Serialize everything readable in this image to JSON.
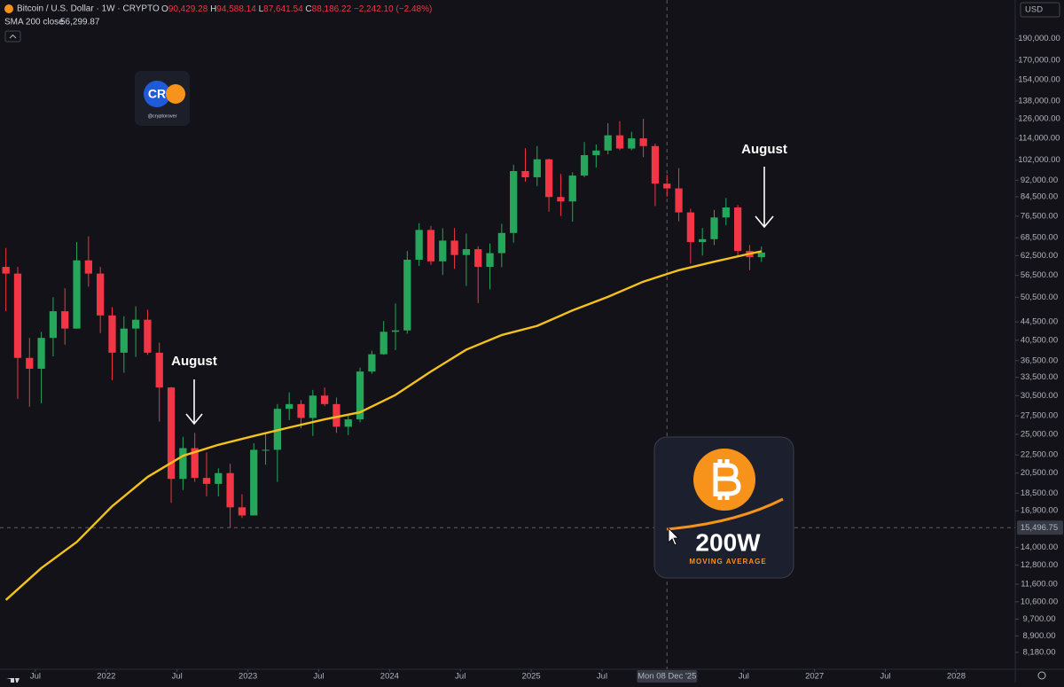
{
  "header": {
    "symbol": "Bitcoin / U.S. Dollar · 1W · CRYPTO",
    "open_label": "O",
    "open": "90,429.28",
    "high_label": "H",
    "high": "94,588.14",
    "low_label": "L",
    "low": "87,641.54",
    "close_label": "C",
    "close": "88,186.22",
    "change": "−2,242.10 (−2.48%)",
    "sma_value": "56,299.87",
    "currency": "USD"
  },
  "logo": {
    "mark": "CR",
    "handle": "@cryptorover"
  },
  "badge": {
    "title": "200W",
    "subtitle": "MOVING AVERAGE"
  },
  "chart_data": {
    "type": "candlestick",
    "log_scale": true,
    "up_color": "#26a65b",
    "down_color": "#f23645",
    "x": [
      "2021-04",
      "2021-05",
      "2021-06",
      "2021-07",
      "2021-08",
      "2021-09",
      "2021-10",
      "2021-11",
      "2021-12",
      "2022-01",
      "2022-02",
      "2022-03",
      "2022-04",
      "2022-05",
      "2022-06",
      "2022-07",
      "2022-08",
      "2022-09",
      "2022-10",
      "2022-11",
      "2022-12",
      "2023-01",
      "2023-02",
      "2023-03",
      "2023-04",
      "2023-05",
      "2023-06",
      "2023-07",
      "2023-08",
      "2023-09",
      "2023-10",
      "2023-11",
      "2023-12",
      "2024-01",
      "2024-02",
      "2024-03",
      "2024-04",
      "2024-05",
      "2024-06",
      "2024-07",
      "2024-08",
      "2024-09",
      "2024-10",
      "2024-11",
      "2024-12",
      "2025-01",
      "2025-02",
      "2025-03",
      "2025-04",
      "2025-05",
      "2025-06",
      "2025-07",
      "2025-08",
      "2025-09",
      "2025-10",
      "2025-11",
      "2025-12",
      "2026-01",
      "2026-02",
      "2026-03",
      "2026-04",
      "2026-05",
      "2026-06",
      "2026-07",
      "2026-08"
    ],
    "open": [
      59000,
      57000,
      37000,
      35000,
      41000,
      47000,
      43000,
      61000,
      57000,
      46000,
      38000,
      43000,
      45000,
      38000,
      31800,
      19900,
      23300,
      20000,
      19400,
      20500,
      17200,
      16500,
      23100,
      23100,
      28500,
      29200,
      27200,
      30500,
      29200,
      26000,
      27000,
      34500,
      37700,
      42300,
      42600,
      61200,
      71300,
      60700,
      67500,
      62700,
      64600,
      59000,
      63300,
      70200,
      96400,
      93400,
      102400,
      84400,
      82500,
      94200,
      104600,
      107100,
      115800,
      108200,
      114000,
      109600,
      90400,
      88200,
      78000,
      67000,
      68000,
      76000,
      80000,
      64000,
      62000
    ],
    "high": [
      65000,
      59000,
      41000,
      42300,
      50500,
      52900,
      67000,
      69000,
      59000,
      48000,
      45800,
      48200,
      47400,
      40000,
      31900,
      24700,
      25200,
      22800,
      21000,
      21500,
      18400,
      23900,
      25200,
      29200,
      31000,
      29800,
      31400,
      31800,
      30200,
      27500,
      35200,
      38400,
      44700,
      48900,
      64000,
      73800,
      72800,
      71900,
      72000,
      70000,
      65600,
      66500,
      73600,
      99600,
      108400,
      109600,
      102800,
      95000,
      95800,
      111900,
      110500,
      123200,
      124500,
      117900,
      126000,
      111000,
      94600,
      97900,
      79500,
      72000,
      79000,
      84000,
      81000,
      66000,
      65500
    ],
    "low": [
      47000,
      30000,
      28800,
      29300,
      37300,
      39600,
      43000,
      53300,
      42000,
      33000,
      34300,
      37200,
      37600,
      26700,
      17600,
      18800,
      19600,
      18200,
      18200,
      15500,
      16300,
      16500,
      21400,
      19600,
      26900,
      25800,
      24800,
      28900,
      25200,
      24900,
      26600,
      34100,
      37600,
      38500,
      41900,
      59300,
      59600,
      56600,
      58400,
      53500,
      49000,
      52600,
      58900,
      66800,
      91300,
      89300,
      78300,
      76600,
      74400,
      93400,
      98200,
      105100,
      107300,
      107300,
      103500,
      80600,
      84500,
      74500,
      60000,
      62500,
      66000,
      73000,
      62000,
      58000,
      60500
    ],
    "close": [
      57000,
      37000,
      35000,
      41000,
      47000,
      43000,
      61000,
      57000,
      46000,
      38000,
      43000,
      45000,
      38000,
      31800,
      19900,
      23300,
      20000,
      19400,
      20500,
      17200,
      16500,
      23100,
      23100,
      28500,
      29200,
      27200,
      30500,
      29200,
      26000,
      27000,
      34500,
      37700,
      42300,
      42600,
      61200,
      71300,
      60700,
      67500,
      62700,
      64600,
      59000,
      63300,
      70200,
      96400,
      93400,
      102400,
      84400,
      82500,
      94200,
      104600,
      107100,
      115800,
      108200,
      114000,
      109600,
      90400,
      88200,
      78000,
      67000,
      68000,
      76000,
      80000,
      64000,
      62000,
      63500
    ],
    "sma": {
      "name": "SMA 200 close",
      "color": "#f5c21b",
      "x": [
        "2021-04",
        "2021-07",
        "2021-10",
        "2022-01",
        "2022-04",
        "2022-07",
        "2022-10",
        "2023-01",
        "2023-04",
        "2023-07",
        "2023-10",
        "2024-01",
        "2024-04",
        "2024-07",
        "2024-10",
        "2025-01",
        "2025-04",
        "2025-07",
        "2025-10",
        "2026-01",
        "2026-04",
        "2026-07",
        "2026-08"
      ],
      "values": [
        10700,
        12600,
        14400,
        17300,
        20100,
        22400,
        23700,
        24800,
        25900,
        27000,
        28000,
        30600,
        34500,
        38600,
        41600,
        43600,
        47200,
        50600,
        54700,
        58000,
        60600,
        63100,
        63900
      ]
    },
    "xlim": [
      "2021-04",
      "2028-06"
    ],
    "xticks": [
      {
        "value": "2021-07",
        "label": "Jul"
      },
      {
        "value": "2022-01",
        "label": "2022"
      },
      {
        "value": "2022-07",
        "label": "Jul"
      },
      {
        "value": "2023-01",
        "label": "2023"
      },
      {
        "value": "2023-07",
        "label": "Jul"
      },
      {
        "value": "2024-01",
        "label": "2024"
      },
      {
        "value": "2024-07",
        "label": "Jul"
      },
      {
        "value": "2025-01",
        "label": "2025"
      },
      {
        "value": "2025-07",
        "label": "Jul"
      },
      {
        "value": "2026-07",
        "label": "Jul"
      },
      {
        "value": "2027-01",
        "label": "2027"
      },
      {
        "value": "2027-07",
        "label": "Jul"
      },
      {
        "value": "2028-01",
        "label": "2028"
      }
    ],
    "ylim": [
      7500,
      231700
    ],
    "yticks": [
      {
        "value": 190000,
        "label": "190,000.00"
      },
      {
        "value": 170000,
        "label": "170,000.00"
      },
      {
        "value": 154000,
        "label": "154,000.00"
      },
      {
        "value": 138000,
        "label": "138,000.00"
      },
      {
        "value": 126000,
        "label": "126,000.00"
      },
      {
        "value": 114000,
        "label": "114,000.00"
      },
      {
        "value": 102000,
        "label": "102,000.00"
      },
      {
        "value": 92000,
        "label": "92,000.00"
      },
      {
        "value": 84500,
        "label": "84,500.00"
      },
      {
        "value": 76500,
        "label": "76,500.00"
      },
      {
        "value": 68500,
        "label": "68,500.00"
      },
      {
        "value": 62500,
        "label": "62,500.00"
      },
      {
        "value": 56500,
        "label": "56,500.00"
      },
      {
        "value": 50500,
        "label": "50,500.00"
      },
      {
        "value": 44500,
        "label": "44,500.00"
      },
      {
        "value": 40500,
        "label": "40,500.00"
      },
      {
        "value": 36500,
        "label": "36,500.00"
      },
      {
        "value": 33500,
        "label": "33,500.00"
      },
      {
        "value": 30500,
        "label": "30,500.00"
      },
      {
        "value": 27500,
        "label": "27,500.00"
      },
      {
        "value": 25000,
        "label": "25,000.00"
      },
      {
        "value": 22500,
        "label": "22,500.00"
      },
      {
        "value": 20500,
        "label": "20,500.00"
      },
      {
        "value": 18500,
        "label": "18,500.00"
      },
      {
        "value": 16900,
        "label": "16,900.00"
      },
      {
        "value": 14000,
        "label": "14,000.00"
      },
      {
        "value": 12800,
        "label": "12,800.00"
      },
      {
        "value": 11600,
        "label": "11,600.00"
      },
      {
        "value": 10600,
        "label": "10,600.00"
      },
      {
        "value": 9700,
        "label": "9,700.00"
      },
      {
        "value": 8900,
        "label": "8,900.00"
      },
      {
        "value": 8180,
        "label": "8,180.00"
      }
    ],
    "crosshair": {
      "x": "2025-12",
      "x_label": "Mon 08 Dec '25",
      "y": 15496.75,
      "y_label": "15,496.75"
    },
    "annotations": [
      {
        "text": "August"
      },
      {
        "text": "August"
      }
    ]
  }
}
